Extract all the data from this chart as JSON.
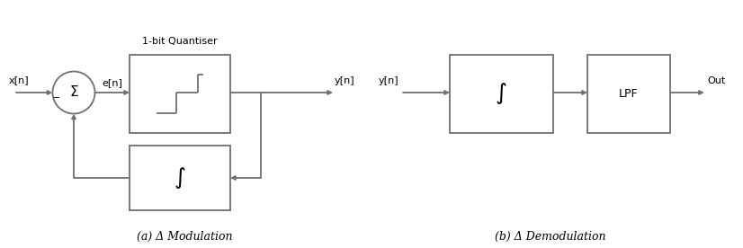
{
  "fig_width": 8.26,
  "fig_height": 2.76,
  "dpi": 100,
  "bg_color": "#ffffff",
  "line_color": "#707070",
  "line_width": 1.3,
  "text_color": "#000000",
  "caption_a": "(a) Δ Modulation",
  "caption_b": "(b) Δ Demodulation",
  "quant_label": "1-bit Quantiser",
  "integral_symbol": "∫",
  "sigma_symbol": "Σ",
  "lpf_label": "LPF",
  "xlim": [
    0,
    8.26
  ],
  "ylim": [
    0,
    2.76
  ]
}
